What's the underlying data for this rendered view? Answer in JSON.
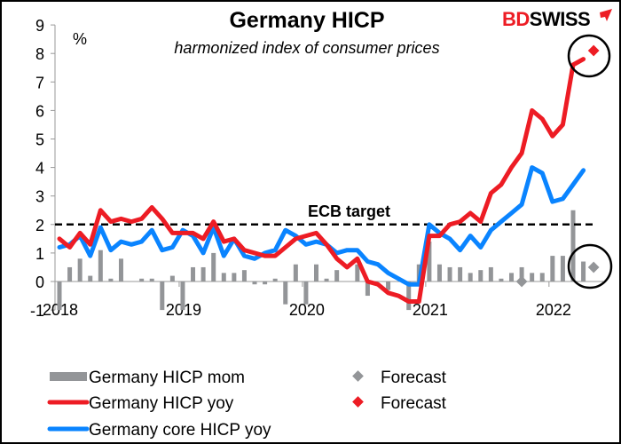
{
  "chart_data": {
    "type": "bar+line",
    "title": "Germany HICP",
    "subtitle": "harmonized index of consumer prices",
    "ylabel": "%",
    "ylim": [
      -1,
      9
    ],
    "yticks": [
      "-1",
      "0",
      "1",
      "2",
      "3",
      "4",
      "5",
      "6",
      "7",
      "8",
      "9"
    ],
    "xtick_labels": [
      "2018",
      "2019",
      "2020",
      "2021",
      "2022"
    ],
    "grid": false,
    "legend_placement": "bottom",
    "x": [
      "2018-01",
      "2018-02",
      "2018-03",
      "2018-04",
      "2018-05",
      "2018-06",
      "2018-07",
      "2018-08",
      "2018-09",
      "2018-10",
      "2018-11",
      "2018-12",
      "2019-01",
      "2019-02",
      "2019-03",
      "2019-04",
      "2019-05",
      "2019-06",
      "2019-07",
      "2019-08",
      "2019-09",
      "2019-10",
      "2019-11",
      "2019-12",
      "2020-01",
      "2020-02",
      "2020-03",
      "2020-04",
      "2020-05",
      "2020-06",
      "2020-07",
      "2020-08",
      "2020-09",
      "2020-10",
      "2020-11",
      "2020-12",
      "2021-01",
      "2021-02",
      "2021-03",
      "2021-04",
      "2021-05",
      "2021-06",
      "2021-07",
      "2021-08",
      "2021-09",
      "2021-10",
      "2021-11",
      "2021-12",
      "2022-01",
      "2022-02",
      "2022-03",
      "2022-04"
    ],
    "series": [
      {
        "name": "Germany HICP mom",
        "type": "bar",
        "color": "#939598",
        "values": [
          -1.0,
          0.5,
          0.8,
          0.2,
          1.1,
          0.1,
          0.8,
          0.0,
          0.1,
          0.1,
          -1.0,
          0.2,
          -1.0,
          0.5,
          0.5,
          1.0,
          0.3,
          0.3,
          0.4,
          -0.1,
          -0.1,
          0.1,
          -0.8,
          0.6,
          -0.8,
          0.6,
          0.1,
          0.4,
          0.0,
          0.6,
          -0.5,
          0.0,
          -0.3,
          0.0,
          -1.0,
          0.6,
          1.4,
          0.6,
          0.5,
          0.5,
          0.3,
          0.4,
          0.5,
          0.1,
          0.3,
          0.5,
          0.3,
          0.3,
          0.9,
          0.9,
          2.5,
          0.7
        ]
      },
      {
        "name": "Germany HICP yoy",
        "type": "line",
        "color": "#ed1c24",
        "values": [
          1.5,
          1.2,
          1.7,
          1.3,
          2.5,
          2.1,
          2.2,
          2.1,
          2.2,
          2.6,
          2.2,
          1.7,
          1.7,
          1.7,
          1.5,
          2.1,
          1.4,
          1.5,
          1.1,
          1.0,
          0.9,
          0.9,
          1.2,
          1.5,
          1.6,
          1.7,
          1.3,
          0.8,
          0.5,
          0.8,
          0.0,
          -0.1,
          -0.4,
          -0.5,
          -0.7,
          -0.7,
          1.6,
          1.6,
          2.0,
          2.1,
          2.4,
          2.1,
          3.1,
          3.4,
          4.0,
          4.5,
          6.0,
          5.7,
          5.1,
          5.5,
          7.6,
          7.8
        ]
      },
      {
        "name": "Germany core HICP yoy",
        "type": "line",
        "color": "#0a84ff",
        "values": [
          1.2,
          1.3,
          1.6,
          0.9,
          1.9,
          1.1,
          1.4,
          1.3,
          1.4,
          1.8,
          1.1,
          1.2,
          1.8,
          1.6,
          1.0,
          1.9,
          0.9,
          1.5,
          0.9,
          0.8,
          1.0,
          1.1,
          1.8,
          1.6,
          1.3,
          1.4,
          1.3,
          1.0,
          1.1,
          1.1,
          0.7,
          0.6,
          0.3,
          0.1,
          -0.1,
          -0.1,
          2.0,
          1.7,
          1.5,
          1.1,
          1.6,
          1.2,
          1.8,
          2.1,
          2.4,
          2.7,
          4.0,
          3.8,
          2.8,
          2.9,
          3.4,
          3.9
        ]
      }
    ],
    "forecasts": [
      {
        "name": "Forecast",
        "of": "Germany HICP mom",
        "color": "#939598",
        "points": [
          {
            "x": "2021-10",
            "y": 0.0
          },
          {
            "x": "2022-05",
            "y": 0.5
          }
        ]
      },
      {
        "name": "Forecast",
        "of": "Germany HICP yoy",
        "color": "#ed1c24",
        "points": [
          {
            "x": "2022-05",
            "y": 8.1
          }
        ]
      }
    ],
    "reference_line": {
      "label": "ECB target",
      "y": 2
    }
  },
  "logo": {
    "part1": "BD",
    "part2": "SWISS",
    "color1": "#ed1c24",
    "color2": "#000000"
  }
}
